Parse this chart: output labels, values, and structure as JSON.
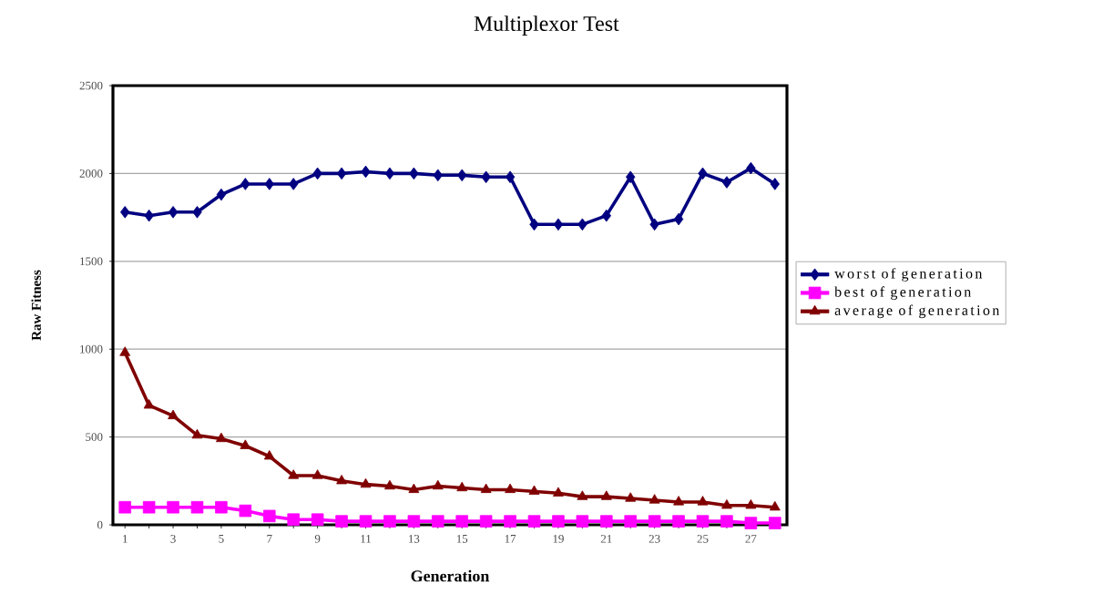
{
  "chart_data": {
    "type": "line",
    "title": "Multiplexor Test",
    "xlabel": "Generation",
    "ylabel": "Raw Fitness",
    "categories": [
      "1",
      null,
      "3",
      null,
      "5",
      null,
      "7",
      null,
      "9",
      null,
      "11",
      null,
      "13",
      null,
      "15",
      null,
      "17",
      null,
      "19",
      null,
      "21",
      null,
      "23",
      null,
      "25",
      null,
      "27",
      null
    ],
    "series": [
      {
        "name": "worst of generation",
        "color": "#000080",
        "marker": "diamond",
        "values": [
          1780,
          1760,
          1780,
          1780,
          1880,
          1940,
          1940,
          1940,
          2000,
          2000,
          2010,
          2000,
          2000,
          1990,
          1990,
          1980,
          1980,
          1710,
          1710,
          1710,
          1760,
          1980,
          1710,
          1740,
          2000,
          1950,
          2030,
          1940
        ]
      },
      {
        "name": "best of generation",
        "color": "#ff00ff",
        "marker": "square",
        "values": [
          100,
          100,
          100,
          100,
          100,
          80,
          50,
          30,
          30,
          20,
          20,
          20,
          20,
          20,
          20,
          20,
          20,
          20,
          20,
          20,
          20,
          20,
          20,
          20,
          20,
          20,
          10,
          10
        ]
      },
      {
        "name": "average of generation",
        "color": "#800000",
        "marker": "triangle",
        "values": [
          980,
          680,
          620,
          510,
          490,
          450,
          390,
          280,
          280,
          250,
          230,
          220,
          200,
          220,
          210,
          200,
          200,
          190,
          180,
          160,
          160,
          150,
          140,
          130,
          130,
          110,
          110,
          100
        ]
      }
    ],
    "ylim": [
      0,
      2500
    ],
    "yticks": [
      0,
      500,
      1000,
      1500,
      2000,
      2500
    ],
    "grid": "y",
    "legend": "right",
    "line_style": "solid"
  }
}
